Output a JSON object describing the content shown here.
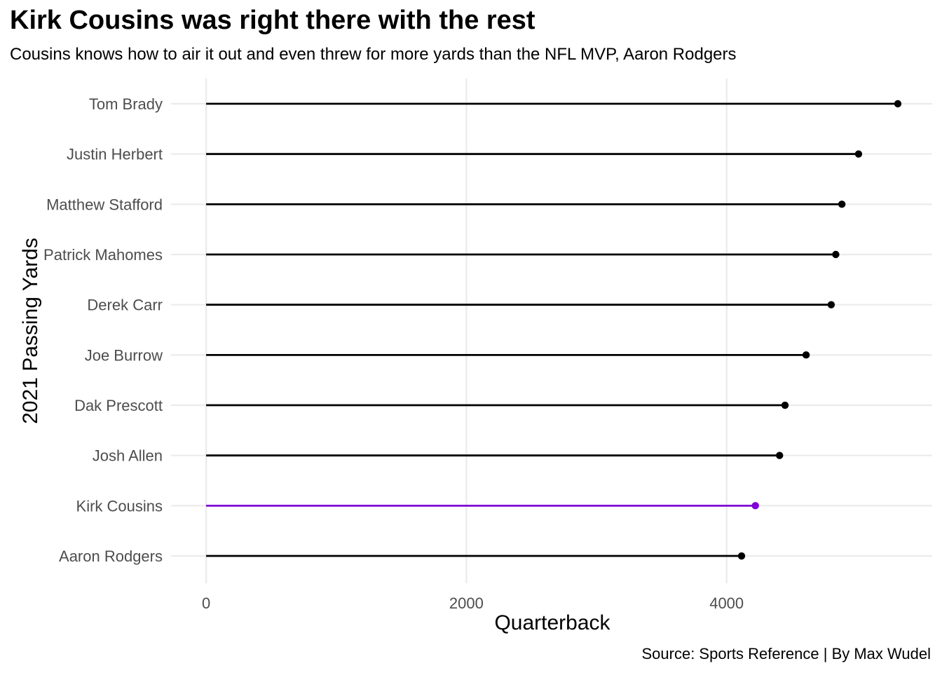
{
  "chart_data": {
    "type": "lollipop",
    "title": "Kirk Cousins was right there with the rest",
    "subtitle": "Cousins knows how to air it out and even threw for more yards than the NFL MVP, Aaron Rodgers",
    "caption": "Source: Sports Reference | By Max Wudel",
    "xlabel": "Quarterback",
    "ylabel": "2021 Passing Yards",
    "xlim": [
      -270,
      5580
    ],
    "x_ticks": [
      0,
      2000,
      4000
    ],
    "x_tick_labels": [
      "0",
      "2000",
      "4000"
    ],
    "grid": true,
    "legend": "none",
    "categories": [
      "Tom Brady",
      "Justin Herbert",
      "Matthew Stafford",
      "Patrick Mahomes",
      "Derek Carr",
      "Joe Burrow",
      "Dak Prescott",
      "Josh Allen",
      "Kirk Cousins",
      "Aaron Rodgers"
    ],
    "values": [
      5316,
      5014,
      4886,
      4839,
      4804,
      4611,
      4449,
      4407,
      4221,
      4115
    ],
    "highlight": "Kirk Cousins",
    "colors": {
      "default": "#000000",
      "highlight": "#8000d7",
      "grid": "#ebebeb",
      "tick_text": "#4d4d4d"
    }
  }
}
